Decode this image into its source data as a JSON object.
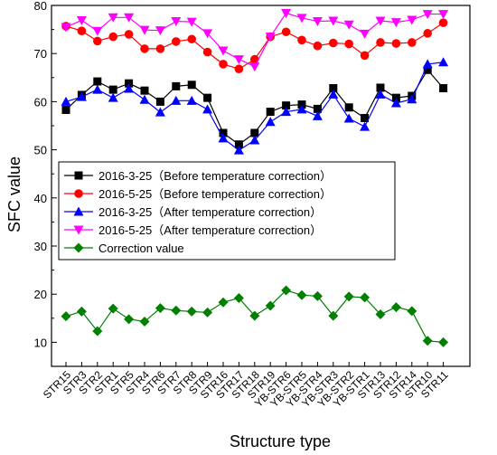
{
  "chart_data": {
    "type": "line",
    "xlabel": "Structure type",
    "ylabel": "SFC value",
    "ylim": [
      5,
      80
    ],
    "yticks": [
      10,
      20,
      30,
      40,
      50,
      60,
      70,
      80
    ],
    "legend_position": "center-left",
    "categories": [
      "STR15",
      "STR3",
      "STR2",
      "STR1",
      "STR5",
      "STR4",
      "STR6",
      "STR7",
      "STR8",
      "STR9",
      "STR16",
      "STR17",
      "STR18",
      "STR19",
      "YB-STR6",
      "YB-STR5",
      "YB-STR4",
      "YB-STR3",
      "YB-STR2",
      "YB-STR1",
      "STR13",
      "STR12",
      "STR14",
      "STR10",
      "STR11"
    ],
    "series": [
      {
        "name": "2016-3-25（Before temperature correction）",
        "color": "#000000",
        "marker": "square",
        "values": [
          58.3,
          61.4,
          64.2,
          62.5,
          63.8,
          62.3,
          60.0,
          63.2,
          63.5,
          60.8,
          53.5,
          51.1,
          53.5,
          57.9,
          59.2,
          59.4,
          58.5,
          62.8,
          58.8,
          56.6,
          62.9,
          60.8,
          61.2,
          66.6,
          62.8
        ]
      },
      {
        "name": "2016-5-25（Before temperature correction）",
        "color": "#ff0000",
        "marker": "circle",
        "values": [
          75.7,
          74.7,
          72.6,
          73.5,
          74.0,
          71.0,
          71.0,
          72.5,
          73.0,
          70.3,
          67.8,
          66.8,
          68.8,
          73.5,
          74.5,
          72.8,
          71.6,
          72.2,
          72.0,
          69.6,
          72.3,
          72.1,
          72.3,
          74.2,
          76.4
        ]
      },
      {
        "name": "2016-3-25（After temperature correction）",
        "color": "#0000ff",
        "marker": "triangle-up",
        "values": [
          60.0,
          61.0,
          62.5,
          60.8,
          62.7,
          60.4,
          57.8,
          60.2,
          60.2,
          58.4,
          52.4,
          49.9,
          52.0,
          55.8,
          57.9,
          58.4,
          57.0,
          61.5,
          56.5,
          54.8,
          61.5,
          59.7,
          60.5,
          67.8,
          68.2
        ]
      },
      {
        "name": "2016-5-25（After temperature correction）",
        "color": "#ff00ff",
        "marker": "triangle-down",
        "values": [
          75.5,
          76.9,
          74.7,
          77.5,
          77.5,
          74.9,
          74.8,
          76.7,
          76.6,
          74.2,
          70.6,
          68.8,
          67.3,
          73.5,
          78.4,
          77.4,
          76.7,
          76.8,
          76.0,
          74.1,
          76.8,
          76.5,
          77.0,
          78.2,
          78.2
        ]
      },
      {
        "name": "Correction value",
        "color": "#008000",
        "marker": "diamond",
        "values": [
          15.4,
          16.4,
          12.3,
          17.0,
          14.8,
          14.3,
          17.1,
          16.6,
          16.4,
          16.2,
          18.3,
          19.2,
          15.5,
          17.6,
          20.8,
          19.8,
          19.6,
          15.5,
          19.5,
          19.3,
          15.8,
          17.3,
          16.5,
          10.3,
          10.0
        ]
      }
    ]
  }
}
